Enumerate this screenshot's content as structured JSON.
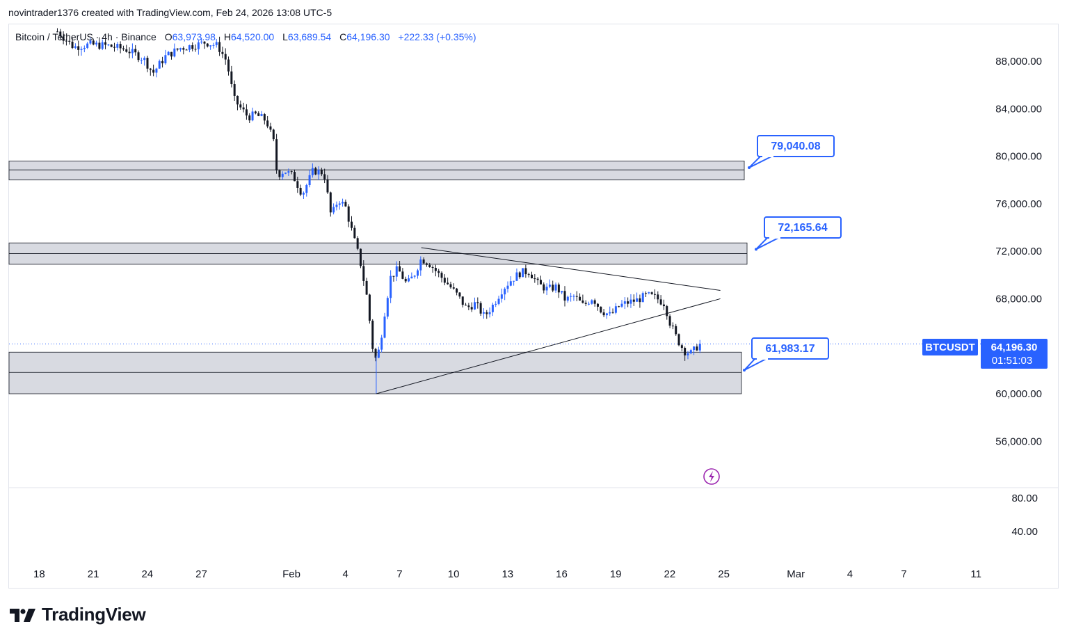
{
  "header": {
    "credit": "novintrader1376 created with TradingView.com, Feb 24, 2026 13:08 UTC-5"
  },
  "symbol": {
    "name": "Bitcoin / TetherUS · 4h · Binance",
    "o_label": "O",
    "o_value": "63,973.98",
    "h_label": "H",
    "h_value": "64,520.00",
    "l_label": "L",
    "l_value": "63,689.54",
    "c_label": "C",
    "c_value": "64,196.30",
    "change": "+222.33 (+0.35%)"
  },
  "price_tag": {
    "ticker": "BTCUSDT",
    "price": "64,196.30",
    "countdown": "01:51:03"
  },
  "logo": {
    "text": "TradingView",
    "icon": "tradingview-logo-icon"
  },
  "colors": {
    "up": "#2962ff",
    "down": "#131722",
    "accent": "#2962ff",
    "zone_fill": "#d1d4dc",
    "volume_icon": "#9c27b0"
  },
  "chart_data": {
    "type": "candlestick",
    "symbol": "BTCUSDT",
    "timeframe": "4h",
    "ylim": [
      52000,
      90000
    ],
    "y_ticks": [
      88000,
      84000,
      80000,
      76000,
      72000,
      68000,
      60000,
      56000
    ],
    "y_tick_labels": [
      "88,000.00",
      "84,000.00",
      "80,000.00",
      "76,000.00",
      "72,000.00",
      "68,000.00",
      "60,000.00",
      "56,000.00"
    ],
    "x_tick_labels": [
      "18",
      "21",
      "24",
      "27",
      "Feb",
      "4",
      "7",
      "10",
      "13",
      "16",
      "19",
      "22",
      "25",
      "Mar",
      "4",
      "7",
      "11"
    ],
    "x_tick_days": [
      -14,
      -11,
      -8,
      -5,
      0,
      3,
      6,
      9,
      12,
      15,
      18,
      21,
      24,
      28,
      31,
      34,
      38
    ],
    "indicator_pane": {
      "ticks": [
        80,
        40
      ],
      "tick_labels": [
        "80.00",
        "40.00"
      ]
    },
    "last_price": 64196.3,
    "zones": [
      {
        "top": 79600,
        "mid": 78850,
        "bottom": 78000
      },
      {
        "top": 72700,
        "mid": 71800,
        "bottom": 70900
      },
      {
        "top": 63500,
        "mid": 61800,
        "bottom": 60000
      }
    ],
    "callouts": [
      "79,040.08",
      "72,165.64",
      "61,983.17"
    ],
    "callout_values": [
      79040.08,
      72165.64,
      61983.17
    ],
    "trendlines": [
      {
        "x1": 7.4,
        "y1": 72300,
        "x2": 24.0,
        "y2": 68700
      },
      {
        "x1": 4.9,
        "y1": 60000,
        "x2": 24.0,
        "y2": 68000
      }
    ],
    "price_path": [
      [
        -12.8,
        90500
      ],
      [
        -11.9,
        89200
      ],
      [
        -11.0,
        89400
      ],
      [
        -10.0,
        89300
      ],
      [
        -9.0,
        89000
      ],
      [
        -8.0,
        88200
      ],
      [
        -7.5,
        87000
      ],
      [
        -6.8,
        88400
      ],
      [
        -6.0,
        89100
      ],
      [
        -5.0,
        89400
      ],
      [
        -4.6,
        89600
      ],
      [
        -3.9,
        89300
      ],
      [
        -3.4,
        88000
      ],
      [
        -3.0,
        84800
      ],
      [
        -2.6,
        84000
      ],
      [
        -2.2,
        83300
      ],
      [
        -1.8,
        83500
      ],
      [
        -1.2,
        83000
      ],
      [
        -0.8,
        81200
      ],
      [
        -0.6,
        78400
      ],
      [
        -0.2,
        78800
      ],
      [
        0.3,
        78300
      ],
      [
        0.8,
        76800
      ],
      [
        1.4,
        78800
      ],
      [
        2.0,
        78600
      ],
      [
        2.4,
        74900
      ],
      [
        2.8,
        76400
      ],
      [
        3.2,
        75700
      ],
      [
        3.6,
        73400
      ],
      [
        4.0,
        71200
      ],
      [
        4.4,
        68000
      ],
      [
        4.7,
        63900
      ],
      [
        4.9,
        62800
      ],
      [
        5.1,
        64000
      ],
      [
        5.4,
        67200
      ],
      [
        5.7,
        69800
      ],
      [
        6.1,
        70500
      ],
      [
        6.6,
        69200
      ],
      [
        7.0,
        70000
      ],
      [
        7.4,
        71400
      ],
      [
        7.9,
        70900
      ],
      [
        8.4,
        70000
      ],
      [
        8.9,
        69200
      ],
      [
        9.4,
        68300
      ],
      [
        9.9,
        67200
      ],
      [
        10.4,
        67600
      ],
      [
        10.9,
        66500
      ],
      [
        11.4,
        67500
      ],
      [
        11.9,
        68800
      ],
      [
        12.4,
        69600
      ],
      [
        12.9,
        70200
      ],
      [
        13.4,
        70300
      ],
      [
        13.9,
        69200
      ],
      [
        14.4,
        68800
      ],
      [
        14.9,
        69000
      ],
      [
        15.4,
        67900
      ],
      [
        15.9,
        68200
      ],
      [
        16.4,
        67400
      ],
      [
        16.9,
        68100
      ],
      [
        17.4,
        67000
      ],
      [
        17.9,
        66600
      ],
      [
        18.4,
        67400
      ],
      [
        18.9,
        67700
      ],
      [
        19.4,
        67900
      ],
      [
        19.9,
        68300
      ],
      [
        20.4,
        68100
      ],
      [
        20.9,
        67600
      ],
      [
        21.2,
        66000
      ],
      [
        21.6,
        64600
      ],
      [
        22.0,
        63600
      ],
      [
        22.4,
        63400
      ],
      [
        22.7,
        63950
      ],
      [
        22.9,
        64196
      ]
    ]
  }
}
